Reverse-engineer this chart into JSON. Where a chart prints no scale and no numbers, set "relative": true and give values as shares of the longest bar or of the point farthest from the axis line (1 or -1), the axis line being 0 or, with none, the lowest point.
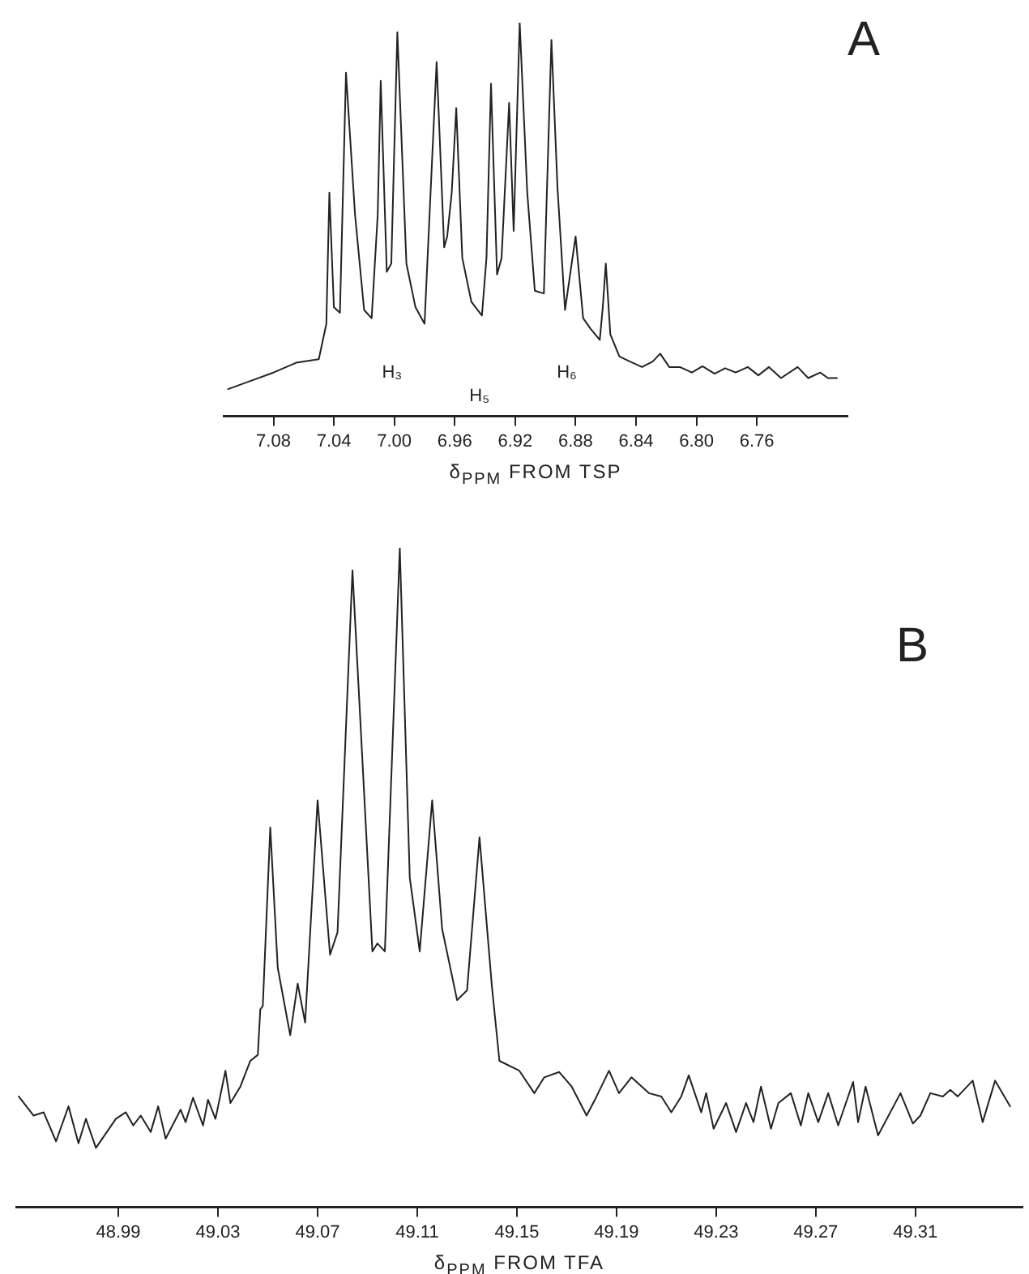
{
  "chart_data": [
    {
      "type": "line",
      "title": "A",
      "xlabel": "δ$_{PPM}$ FROM TSP",
      "relative": true,
      "color": "#222222",
      "xlim": [
        7.113,
        6.7
      ],
      "xticks": [
        7.08,
        7.04,
        {
          "value": 7.0,
          "label": "7.00"
        },
        6.96,
        6.92,
        6.88,
        6.84,
        {
          "value": 6.8,
          "label": "6.80"
        },
        6.76
      ],
      "annotations": [
        "H₃",
        "H₅",
        "H₆"
      ],
      "x": [
        7.11,
        7.095,
        7.08,
        7.065,
        7.05,
        7.045,
        7.043,
        7.04,
        7.036,
        7.032,
        7.026,
        7.02,
        7.015,
        7.011,
        7.009,
        7.005,
        7.002,
        6.998,
        6.992,
        6.986,
        6.98,
        6.977,
        6.972,
        6.967,
        6.965,
        6.962,
        6.959,
        6.955,
        6.949,
        6.942,
        6.939,
        6.936,
        6.932,
        6.929,
        6.924,
        6.921,
        6.917,
        6.912,
        6.907,
        6.901,
        6.896,
        6.892,
        6.887,
        6.88,
        6.875,
        6.87,
        6.864,
        6.862,
        6.86,
        6.857,
        6.851,
        6.844,
        6.836,
        6.829,
        6.824,
        6.818,
        6.811,
        6.803,
        6.796,
        6.788,
        6.781,
        6.774,
        6.766,
        6.759,
        6.752,
        6.744,
        6.733,
        6.726,
        6.718,
        6.713,
        6.707
      ],
      "values": [
        0.069,
        0.09,
        0.111,
        0.136,
        0.145,
        0.235,
        0.568,
        0.277,
        0.263,
        0.873,
        0.512,
        0.27,
        0.249,
        0.512,
        0.852,
        0.367,
        0.388,
        0.976,
        0.388,
        0.277,
        0.235,
        0.485,
        0.9,
        0.429,
        0.457,
        0.568,
        0.783,
        0.402,
        0.291,
        0.256,
        0.402,
        0.845,
        0.36,
        0.402,
        0.796,
        0.471,
        1,
        0.568,
        0.319,
        0.312,
        0.956,
        0.582,
        0.27,
        0.457,
        0.249,
        0.222,
        0.194,
        0.277,
        0.388,
        0.208,
        0.152,
        0.139,
        0.125,
        0.139,
        0.159,
        0.125,
        0.125,
        0.111,
        0.127,
        0.108,
        0.122,
        0.111,
        0.125,
        0.104,
        0.125,
        0.097,
        0.125,
        0.097,
        0.111,
        0.097,
        0.097
      ]
    },
    {
      "type": "line",
      "title": "B",
      "xlabel": "δ$_{PPM}$ FROM TFA",
      "relative": true,
      "color": "#222222",
      "xlim": [
        48.949,
        49.353
      ],
      "xticks": [
        48.99,
        49.03,
        49.07,
        49.11,
        49.15,
        49.19,
        49.23,
        49.27,
        49.31
      ],
      "x": [
        48.95,
        48.956,
        48.96,
        48.965,
        48.97,
        48.974,
        48.977,
        48.981,
        48.989,
        48.993,
        48.996,
        48.999,
        49.003,
        49.006,
        49.009,
        49.015,
        49.017,
        49.02,
        49.024,
        49.026,
        49.029,
        49.033,
        49.035,
        49.039,
        49.043,
        49.046,
        49.047,
        49.048,
        49.051,
        49.054,
        49.059,
        49.062,
        49.065,
        49.07,
        49.075,
        49.078,
        49.084,
        49.092,
        49.094,
        49.097,
        49.103,
        49.107,
        49.111,
        49.116,
        49.12,
        49.126,
        49.13,
        49.135,
        49.14,
        49.143,
        49.151,
        49.157,
        49.161,
        49.167,
        49.172,
        49.178,
        49.182,
        49.187,
        49.191,
        49.196,
        49.203,
        49.208,
        49.212,
        49.216,
        49.219,
        49.224,
        49.226,
        49.229,
        49.234,
        49.238,
        49.242,
        49.245,
        49.248,
        49.252,
        49.255,
        49.26,
        49.264,
        49.267,
        49.271,
        49.275,
        49.279,
        49.285,
        49.287,
        49.29,
        49.295,
        49.304,
        49.309,
        49.312,
        49.316,
        49.321,
        49.324,
        49.327,
        49.333,
        49.337,
        49.342,
        49.348
      ],
      "values": [
        0.168,
        0.139,
        0.144,
        0.1,
        0.153,
        0.097,
        0.134,
        0.09,
        0.134,
        0.144,
        0.124,
        0.139,
        0.114,
        0.153,
        0.104,
        0.148,
        0.129,
        0.166,
        0.124,
        0.163,
        0.134,
        0.207,
        0.158,
        0.183,
        0.222,
        0.231,
        0.3,
        0.305,
        0.576,
        0.363,
        0.261,
        0.339,
        0.28,
        0.617,
        0.383,
        0.417,
        0.966,
        0.388,
        0.4,
        0.388,
        1.0,
        0.5,
        0.388,
        0.617,
        0.422,
        0.314,
        0.329,
        0.561,
        0.334,
        0.222,
        0.207,
        0.173,
        0.197,
        0.205,
        0.183,
        0.139,
        0.168,
        0.207,
        0.173,
        0.197,
        0.173,
        0.168,
        0.144,
        0.168,
        0.2,
        0.144,
        0.173,
        0.119,
        0.158,
        0.114,
        0.158,
        0.129,
        0.183,
        0.119,
        0.158,
        0.173,
        0.124,
        0.173,
        0.129,
        0.173,
        0.124,
        0.19,
        0.129,
        0.183,
        0.109,
        0.173,
        0.127,
        0.139,
        0.173,
        0.168,
        0.178,
        0.168,
        0.192,
        0.129,
        0.192,
        0.153
      ]
    }
  ]
}
